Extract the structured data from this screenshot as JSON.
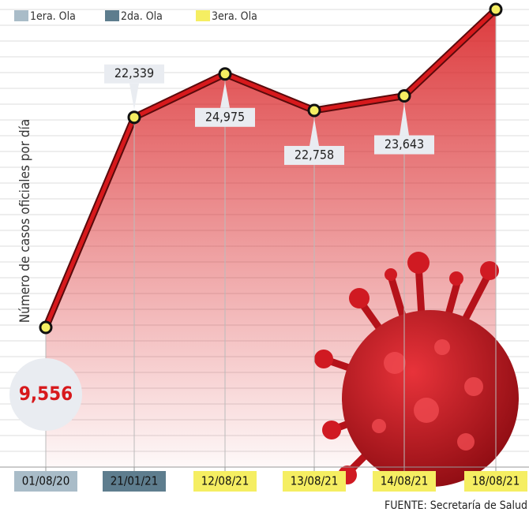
{
  "chart_data": {
    "type": "line",
    "y_label": "Número de casos oficiales por día",
    "legend": [
      {
        "name": "1era. Ola",
        "color": "#a9bcc8"
      },
      {
        "name": "2da. Ola",
        "color": "#5e7d8e"
      },
      {
        "name": "3era. Ola",
        "color": "#f5ee62"
      }
    ],
    "categories": [
      "01/08/20",
      "21/01/21",
      "12/08/21",
      "13/08/21",
      "14/08/21",
      "18/08/21"
    ],
    "category_colors": [
      "#a9bcc8",
      "#5e7d8e",
      "#f5ee62",
      "#f5ee62",
      "#f5ee62",
      "#f5ee62"
    ],
    "values": [
      9556,
      22339,
      24975,
      22758,
      23643,
      28900
    ],
    "value_labels": [
      "9,556",
      "22,339",
      "24,975",
      "22,758",
      "23,643",
      null
    ],
    "color": "#d7191c",
    "source": "FUENTE: Secretaría de Salud"
  }
}
